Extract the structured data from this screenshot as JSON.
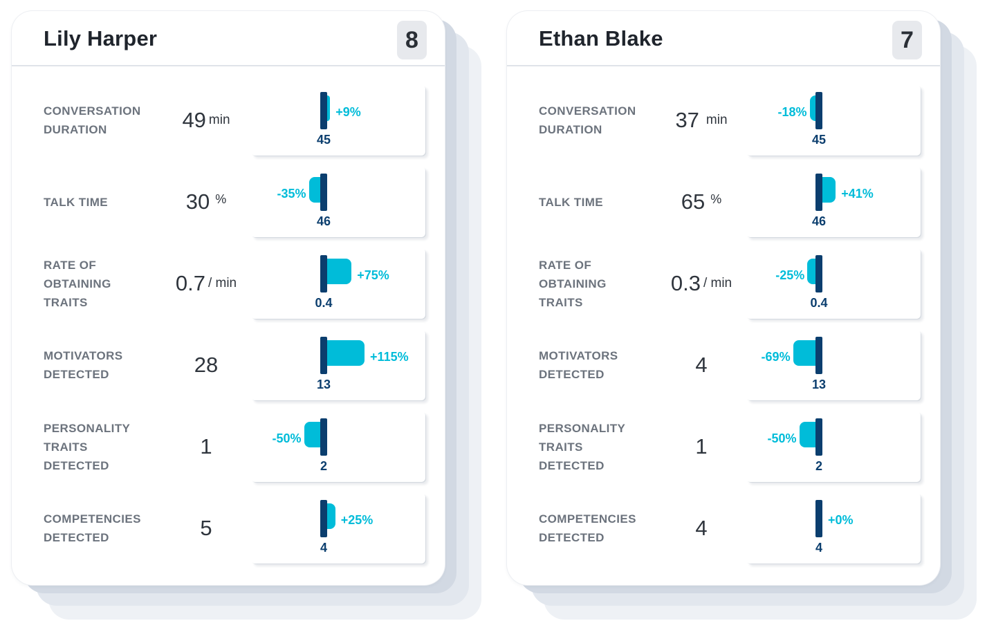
{
  "colors": {
    "accent": "#00bcd9",
    "benchmark": "#0b3e6e",
    "label": "#6c737d",
    "title": "#1f242c",
    "badge_bg": "#e7e9ed"
  },
  "cards": [
    {
      "name": "Lily Harper",
      "score": "8",
      "metrics": [
        {
          "label": [
            "CONVERSATION",
            "DURATION"
          ],
          "value": "49",
          "unit": "min",
          "delta": "+9%",
          "delta_value": 9,
          "benchmark": "45"
        },
        {
          "label": [
            "TALK TIME"
          ],
          "value": "30",
          "unit": "%",
          "delta": "-35%",
          "delta_value": -35,
          "benchmark": "46"
        },
        {
          "label": [
            "RATE OF",
            "OBTAINING",
            "TRAITS"
          ],
          "value": "0.7",
          "unit": "/ min",
          "delta": "+75%",
          "delta_value": 75,
          "benchmark": "0.4"
        },
        {
          "label": [
            "MOTIVATORS",
            "DETECTED"
          ],
          "value": "28",
          "unit": "",
          "delta": "+115%",
          "delta_value": 115,
          "benchmark": "13"
        },
        {
          "label": [
            "PERSONALITY",
            "TRAITS",
            "DETECTED"
          ],
          "value": "1",
          "unit": "",
          "delta": "-50%",
          "delta_value": -50,
          "benchmark": "2"
        },
        {
          "label": [
            "COMPETENCIES",
            "DETECTED"
          ],
          "value": "5",
          "unit": "",
          "delta": "+25%",
          "delta_value": 25,
          "benchmark": "4"
        }
      ]
    },
    {
      "name": "Ethan Blake",
      "score": "7",
      "metrics": [
        {
          "label": [
            "CONVERSATION",
            "DURATION"
          ],
          "value": "37",
          "unit": "min",
          "delta": "-18%",
          "delta_value": -18,
          "benchmark": "45"
        },
        {
          "label": [
            "TALK TIME"
          ],
          "value": "65",
          "unit": "%",
          "delta": "+41%",
          "delta_value": 41,
          "benchmark": "46"
        },
        {
          "label": [
            "RATE OF",
            "OBTAINING",
            "TRAITS"
          ],
          "value": "0.3",
          "unit": "/ min",
          "delta": "-25%",
          "delta_value": -25,
          "benchmark": "0.4"
        },
        {
          "label": [
            "MOTIVATORS",
            "DETECTED"
          ],
          "value": "4",
          "unit": "",
          "delta": "-69%",
          "delta_value": -69,
          "benchmark": "13"
        },
        {
          "label": [
            "PERSONALITY",
            "TRAITS",
            "DETECTED"
          ],
          "value": "1",
          "unit": "",
          "delta": "-50%",
          "delta_value": -50,
          "benchmark": "2"
        },
        {
          "label": [
            "COMPETENCIES",
            "DETECTED"
          ],
          "value": "4",
          "unit": "",
          "delta": "+0%",
          "delta_value": 0,
          "benchmark": "4"
        }
      ]
    }
  ]
}
